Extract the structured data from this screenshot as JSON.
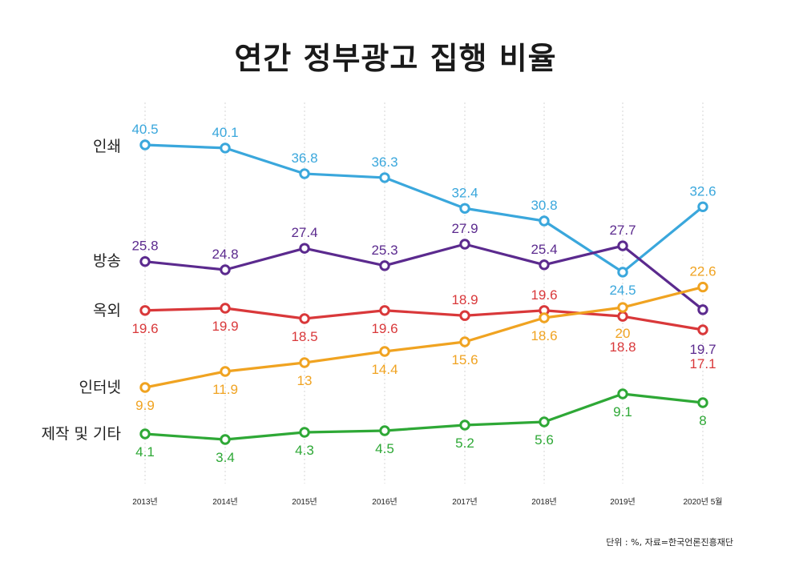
{
  "chart_data": {
    "type": "line",
    "title": "연간 정부광고 집행 비율",
    "categories": [
      "2013년",
      "2014년",
      "2015년",
      "2016년",
      "2017년",
      "2018년",
      "2019년",
      "2020년 5월"
    ],
    "series": [
      {
        "name": "인쇄",
        "color": "#3aa7dc",
        "values": [
          40.5,
          40.1,
          36.8,
          36.3,
          32.4,
          30.8,
          24.5,
          32.6
        ],
        "labels": [
          "40.5",
          "40.1",
          "36.8",
          "36.3",
          "32.4",
          "30.8",
          "24.5",
          "32.6"
        ]
      },
      {
        "name": "방송",
        "color": "#5b2a8e",
        "values": [
          25.8,
          24.8,
          27.4,
          25.3,
          27.9,
          25.4,
          27.7,
          19.7
        ],
        "labels": [
          "25.8",
          "24.8",
          "27.4",
          "25.3",
          "27.9",
          "25.4",
          "27.7",
          "19.7"
        ]
      },
      {
        "name": "옥외",
        "color": "#d9383a",
        "values": [
          19.6,
          19.9,
          18.5,
          19.6,
          18.9,
          19.6,
          18.8,
          17.1
        ],
        "labels": [
          "19.6",
          "19.9",
          "18.5",
          "19.6",
          "18.9",
          "19.6",
          "18.8",
          "17.1"
        ]
      },
      {
        "name": "인터넷",
        "color": "#f0a321",
        "values": [
          9.9,
          11.9,
          13,
          14.4,
          15.6,
          18.6,
          20,
          22.6
        ],
        "labels": [
          "9.9",
          "11.9",
          "13",
          "14.4",
          "15.6",
          "18.6",
          "20",
          "22.6"
        ]
      },
      {
        "name": "제작 및 기타",
        "color": "#2ea836",
        "values": [
          4.1,
          3.4,
          4.3,
          4.5,
          5.2,
          5.6,
          9.1,
          8
        ],
        "labels": [
          "4.1",
          "3.4",
          "4.3",
          "4.5",
          "5.2",
          "5.6",
          "9.1",
          "8"
        ]
      }
    ],
    "grid": "vertical",
    "source": "단위 : %,  자료=한국언론진흥재단"
  }
}
